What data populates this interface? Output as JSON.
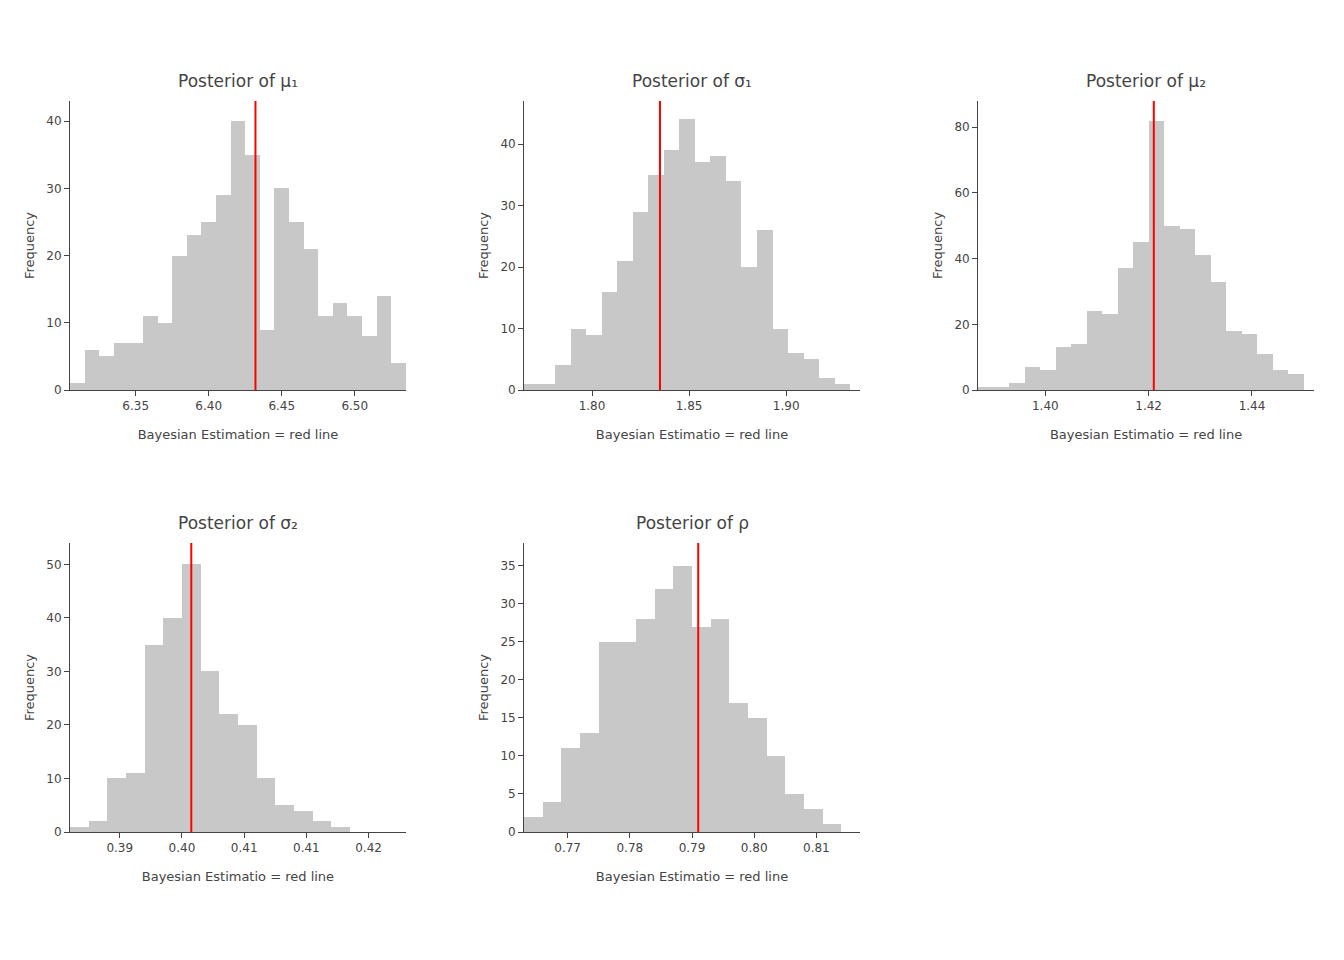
{
  "chart_data": [
    {
      "type": "histogram",
      "title": "Posterior of μ₁",
      "xlabel": "Bayesian Estimation = red line",
      "ylabel": "Frequency",
      "bins": [
        6.305,
        6.315,
        6.325,
        6.335,
        6.345,
        6.355,
        6.365,
        6.375,
        6.385,
        6.395,
        6.405,
        6.415,
        6.425,
        6.435,
        6.445,
        6.455,
        6.465,
        6.475,
        6.485,
        6.495,
        6.505,
        6.515,
        6.525,
        6.535
      ],
      "values": [
        1,
        6,
        5,
        7,
        7,
        11,
        10,
        20,
        23,
        25,
        29,
        40,
        35,
        9,
        30,
        25,
        21,
        11,
        13,
        11,
        8,
        14,
        4
      ],
      "color": "#c8c8c8",
      "reference_line": {
        "x": 6.432,
        "color": "#ff0000"
      },
      "xlim": [
        6.305,
        6.535
      ],
      "ylim": [
        0,
        43
      ],
      "xticks": [
        6.35,
        {
          "value": 6.4,
          "label": "6.40"
        },
        6.45,
        {
          "value": 6.5,
          "label": "6.50"
        }
      ],
      "yticks": [
        0,
        10,
        20,
        30,
        40
      ],
      "grid": false
    },
    {
      "type": "histogram",
      "title": "Posterior of σ₁",
      "xlabel": "Bayesian Estimatio = red line",
      "ylabel": "Frequency",
      "bins": [
        1.765,
        1.773,
        1.781,
        1.789,
        1.797,
        1.805,
        1.813,
        1.821,
        1.829,
        1.837,
        1.845,
        1.853,
        1.861,
        1.869,
        1.877,
        1.885,
        1.893,
        1.901,
        1.909,
        1.917,
        1.925,
        1.933
      ],
      "values": [
        1,
        1,
        4,
        10,
        9,
        16,
        21,
        29,
        35,
        39,
        44,
        37,
        38,
        34,
        20,
        26,
        10,
        6,
        5,
        2,
        1
      ],
      "color": "#c8c8c8",
      "reference_line": {
        "x": 1.835,
        "color": "#ff0000"
      },
      "xlim": [
        1.765,
        1.938
      ],
      "ylim": [
        0,
        47
      ],
      "xticks": [
        {
          "value": 1.8,
          "label": "1.80"
        },
        1.85,
        {
          "value": 1.9,
          "label": "1.90"
        }
      ],
      "yticks": [
        0,
        10,
        20,
        30,
        40
      ],
      "grid": false
    },
    {
      "type": "histogram",
      "title": "Posterior of μ₂",
      "xlabel": "Bayesian Estimatio = red line",
      "ylabel": "Frequency",
      "bins": [
        1.387,
        1.39,
        1.393,
        1.396,
        1.399,
        1.402,
        1.405,
        1.408,
        1.411,
        1.414,
        1.417,
        1.42,
        1.423,
        1.426,
        1.429,
        1.432,
        1.435,
        1.438,
        1.441,
        1.444,
        1.447,
        1.45
      ],
      "values": [
        1,
        1,
        2,
        7,
        6,
        13,
        14,
        24,
        23,
        37,
        45,
        82,
        50,
        49,
        41,
        33,
        18,
        17,
        11,
        6,
        5
      ],
      "color": "#c8c8c8",
      "reference_line": {
        "x": 1.421,
        "color": "#ff0000"
      },
      "xlim": [
        1.387,
        1.452
      ],
      "ylim": [
        0,
        88
      ],
      "xticks": [
        {
          "value": 1.4,
          "label": "1.40"
        },
        1.42,
        1.44
      ],
      "yticks": [
        0,
        20,
        40,
        60,
        80
      ],
      "grid": false
    },
    {
      "type": "histogram",
      "title": "Posterior of σ₂",
      "xlabel": "Bayesian Estimatio = red line",
      "ylabel": "Frequency",
      "bins": [
        0.377,
        0.38,
        0.383,
        0.386,
        0.389,
        0.392,
        0.395,
        0.398,
        0.401,
        0.404,
        0.407,
        0.41,
        0.413,
        0.416,
        0.419,
        0.422
      ],
      "values": [
        1,
        2,
        10,
        11,
        35,
        40,
        50,
        30,
        22,
        20,
        10,
        5,
        4,
        2,
        1
      ],
      "color": "#c8c8c8",
      "reference_line": {
        "x": 0.3965,
        "color": "#ff0000"
      },
      "xlim": [
        0.377,
        0.431
      ],
      "ylim": [
        0,
        54
      ],
      "xticks": [
        {
          "value": 0.385,
          "label": "0.39"
        },
        {
          "value": 0.395,
          "label": "0.40"
        },
        {
          "value": 0.405,
          "label": "0.41"
        },
        {
          "value": 0.415,
          "label": "0.41"
        },
        {
          "value": 0.425,
          "label": "0.42"
        }
      ],
      "yticks": [
        0,
        10,
        20,
        30,
        40,
        50
      ],
      "grid": false
    },
    {
      "type": "histogram",
      "title": "Posterior of ρ",
      "xlabel": "Bayesian Estimatio = red line",
      "ylabel": "Frequency",
      "bins": [
        0.763,
        0.766,
        0.769,
        0.772,
        0.775,
        0.778,
        0.781,
        0.784,
        0.787,
        0.79,
        0.793,
        0.796,
        0.799,
        0.802,
        0.805,
        0.808,
        0.811,
        0.814
      ],
      "values": [
        2,
        4,
        11,
        13,
        25,
        25,
        28,
        32,
        35,
        27,
        28,
        17,
        15,
        10,
        5,
        3,
        1
      ],
      "color": "#c8c8c8",
      "reference_line": {
        "x": 0.791,
        "color": "#ff0000"
      },
      "xlim": [
        0.763,
        0.817
      ],
      "ylim": [
        0,
        38
      ],
      "xticks": [
        0.77,
        0.78,
        0.79,
        {
          "value": 0.8,
          "label": "0.80"
        },
        0.81
      ],
      "yticks": [
        0,
        5,
        10,
        15,
        20,
        25,
        30,
        35
      ],
      "grid": false
    }
  ]
}
